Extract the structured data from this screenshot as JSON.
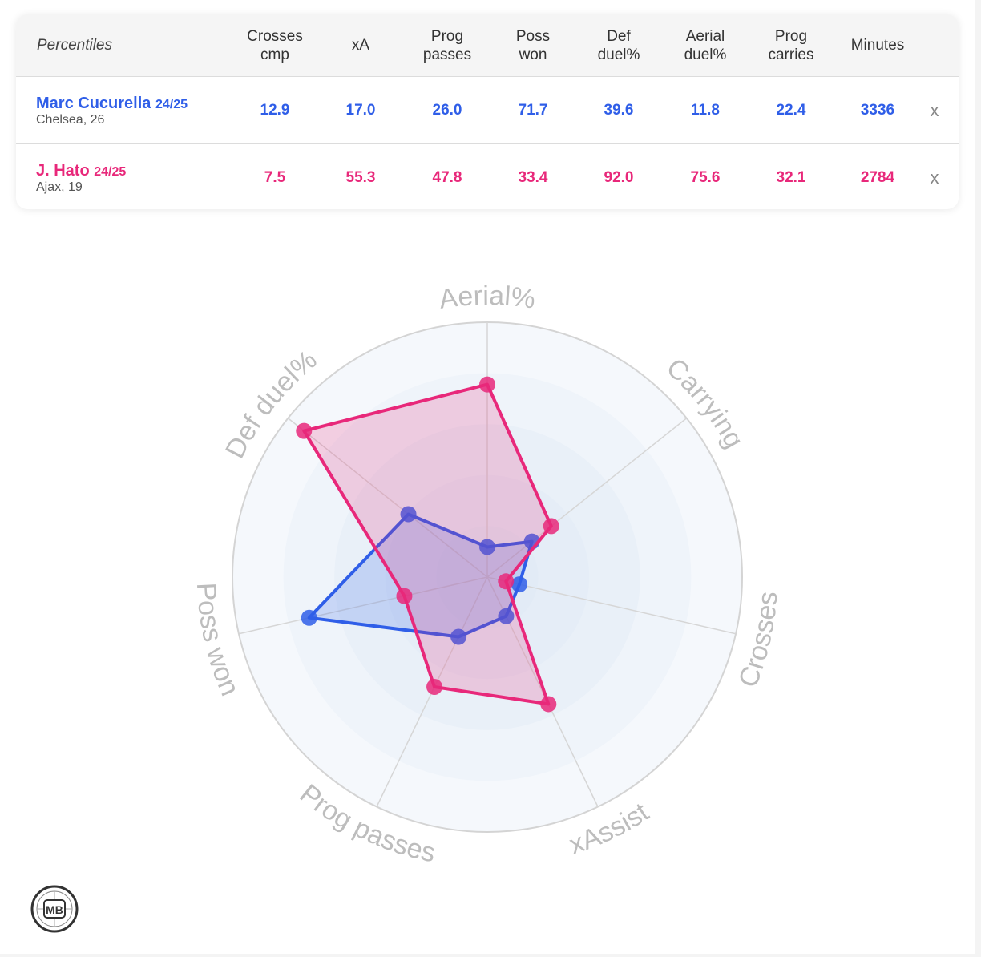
{
  "table": {
    "header_first": "Percentiles",
    "columns": [
      "Crosses\ncmp",
      "xA",
      "Prog\npasses",
      "Poss\nwon",
      "Def\nduel%",
      "Aerial\nduel%",
      "Prog\ncarries",
      "Minutes"
    ],
    "remove_label": "x",
    "players": [
      {
        "name": "Marc Cucurella",
        "season": "24/25",
        "club": "Chelsea, 26",
        "color": "#2f5ee8",
        "values": [
          "12.9",
          "17.0",
          "26.0",
          "71.7",
          "39.6",
          "11.8",
          "22.4",
          "3336"
        ]
      },
      {
        "name": "J. Hato",
        "season": "24/25",
        "club": "Ajax, 19",
        "color": "#e8287a",
        "values": [
          "7.5",
          "55.3",
          "47.8",
          "33.4",
          "92.0",
          "75.6",
          "32.1",
          "2784"
        ]
      }
    ]
  },
  "chart_data": {
    "type": "radar",
    "axes": [
      "Aerial%",
      "Carrying",
      "Crosses",
      "xAssist",
      "Prog passes",
      "Poss won",
      "Def duel%"
    ],
    "range": [
      0,
      100
    ],
    "series": [
      {
        "name": "Marc Cucurella",
        "color": "#2f5ee8",
        "values": [
          11.8,
          22.4,
          12.9,
          17.0,
          26.0,
          71.7,
          39.6
        ]
      },
      {
        "name": "J. Hato",
        "color": "#e8287a",
        "values": [
          75.6,
          32.1,
          7.5,
          55.3,
          47.8,
          33.4,
          92.0
        ]
      }
    ],
    "grid": true
  },
  "logo": {
    "text": "MB"
  }
}
